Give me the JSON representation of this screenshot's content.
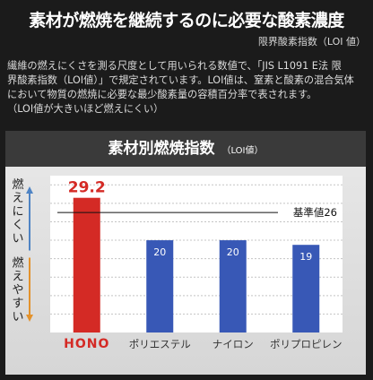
{
  "heading": {
    "title": "素材が燃焼を継続するのに必要な酸素濃度",
    "subtitle": "限界酸素指数（LOI 値）"
  },
  "description": {
    "line1": "繊維の燃えにくさを測る尺度として用いられる数値で、「JIS L1091 E法 限",
    "line2": "界酸素指数（LOI値）」で規定されています。LOI値は、窒素と酸素の混合気体",
    "line3": "において物質の燃焼に必要な最少酸素量の容積百分率で表されます。",
    "line4": "（LOI値が大きいほど燃えにくい）"
  },
  "colors": {
    "highlight_bar": "#d42a25",
    "bar": "#3858b6",
    "arrow_up": "#4f84c4",
    "arrow_down": "#e3922c",
    "highlight_label": "#d42a25"
  },
  "chart_data": {
    "type": "bar",
    "title": "素材別燃焼指数",
    "subtitle": "（LOI値）",
    "categories": [
      "HONO",
      "ポリエステル",
      "ナイロン",
      "ポリプロピレン"
    ],
    "values": [
      29.2,
      20,
      20,
      19
    ],
    "value_labels": [
      "29.2",
      "20",
      "20",
      "19"
    ],
    "highlight_index": 0,
    "ylim": [
      0,
      34
    ],
    "grid": true,
    "reference_line": {
      "value": 26,
      "label": "基準値26"
    },
    "y_annotations": {
      "top": "燃えにくい",
      "bottom": "燃えやすい"
    }
  }
}
